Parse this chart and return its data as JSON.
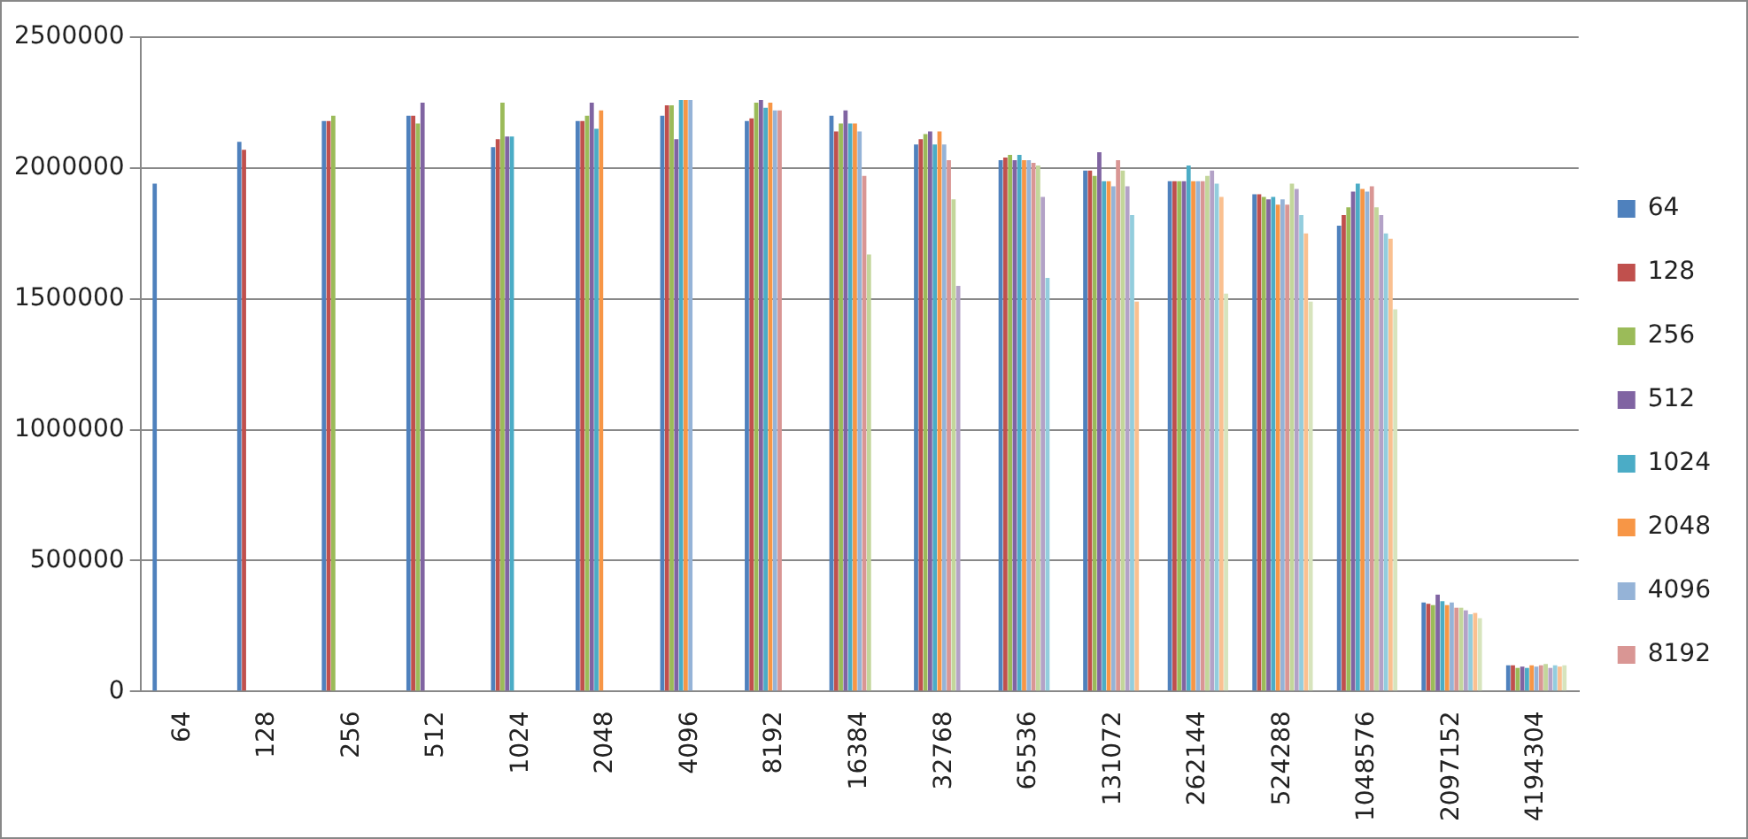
{
  "chart_data": {
    "type": "bar",
    "categories": [
      "64",
      "128",
      "256",
      "512",
      "1024",
      "2048",
      "4096",
      "8192",
      "16384",
      "32768",
      "65536",
      "131072",
      "262144",
      "524288",
      "1048576",
      "2097152",
      "4194304"
    ],
    "ylim": [
      0,
      2500000
    ],
    "yticks": [
      0,
      500000,
      1000000,
      1500000,
      2000000,
      2500000
    ],
    "grid": "y",
    "legend": "right",
    "series": [
      {
        "name": "64",
        "color": "#4f81bd",
        "values": [
          1940000,
          2100000,
          2180000,
          2200000,
          2080000,
          2180000,
          2200000,
          2180000,
          2200000,
          2090000,
          2030000,
          1990000,
          1950000,
          1900000,
          1780000,
          340000,
          100000
        ]
      },
      {
        "name": "128",
        "color": "#c0504d",
        "values": [
          null,
          2070000,
          2180000,
          2200000,
          2110000,
          2180000,
          2240000,
          2190000,
          2140000,
          2110000,
          2040000,
          1990000,
          1950000,
          1900000,
          1820000,
          335000,
          100000
        ]
      },
      {
        "name": "256",
        "color": "#9bbb59",
        "values": [
          null,
          null,
          2200000,
          2170000,
          2250000,
          2200000,
          2240000,
          2250000,
          2170000,
          2130000,
          2050000,
          1970000,
          1950000,
          1890000,
          1850000,
          330000,
          90000
        ]
      },
      {
        "name": "512",
        "color": "#8064a2",
        "values": [
          null,
          null,
          null,
          2250000,
          2120000,
          2250000,
          2110000,
          2260000,
          2220000,
          2140000,
          2030000,
          2060000,
          1950000,
          1880000,
          1910000,
          370000,
          95000
        ]
      },
      {
        "name": "1024",
        "color": "#4bacc6",
        "values": [
          null,
          null,
          null,
          null,
          2120000,
          2150000,
          2260000,
          2230000,
          2170000,
          2090000,
          2050000,
          1950000,
          2010000,
          1890000,
          1940000,
          345000,
          90000
        ]
      },
      {
        "name": "2048",
        "color": "#f79646",
        "values": [
          null,
          null,
          null,
          null,
          null,
          2220000,
          2260000,
          2250000,
          2170000,
          2140000,
          2030000,
          1950000,
          1950000,
          1860000,
          1920000,
          330000,
          100000
        ]
      },
      {
        "name": "4096",
        "color": "#95b3d7",
        "values": [
          null,
          null,
          null,
          null,
          null,
          null,
          2260000,
          2220000,
          2140000,
          2090000,
          2030000,
          1930000,
          1950000,
          1880000,
          1910000,
          340000,
          95000
        ]
      },
      {
        "name": "8192",
        "color": "#d99694",
        "values": [
          null,
          null,
          null,
          null,
          null,
          null,
          null,
          2220000,
          1970000,
          2030000,
          2020000,
          2030000,
          1950000,
          1860000,
          1930000,
          320000,
          100000
        ]
      },
      {
        "color": "#c3d69b",
        "values": [
          null,
          null,
          null,
          null,
          null,
          null,
          null,
          null,
          1670000,
          1880000,
          2010000,
          1990000,
          1970000,
          1940000,
          1850000,
          320000,
          105000
        ]
      },
      {
        "color": "#b3a2c7",
        "values": [
          null,
          null,
          null,
          null,
          null,
          null,
          null,
          null,
          null,
          1550000,
          1890000,
          1930000,
          1990000,
          1920000,
          1820000,
          310000,
          90000
        ]
      },
      {
        "color": "#93cddd",
        "values": [
          null,
          null,
          null,
          null,
          null,
          null,
          null,
          null,
          null,
          null,
          1580000,
          1820000,
          1940000,
          1820000,
          1750000,
          295000,
          100000
        ]
      },
      {
        "color": "#fac090",
        "values": [
          null,
          null,
          null,
          null,
          null,
          null,
          null,
          null,
          null,
          null,
          null,
          1490000,
          1890000,
          1750000,
          1730000,
          300000,
          95000
        ]
      },
      {
        "color": "#d7e4bd",
        "values": [
          null,
          null,
          null,
          null,
          null,
          null,
          null,
          null,
          null,
          null,
          null,
          null,
          1520000,
          1490000,
          1460000,
          280000,
          100000
        ]
      }
    ]
  }
}
